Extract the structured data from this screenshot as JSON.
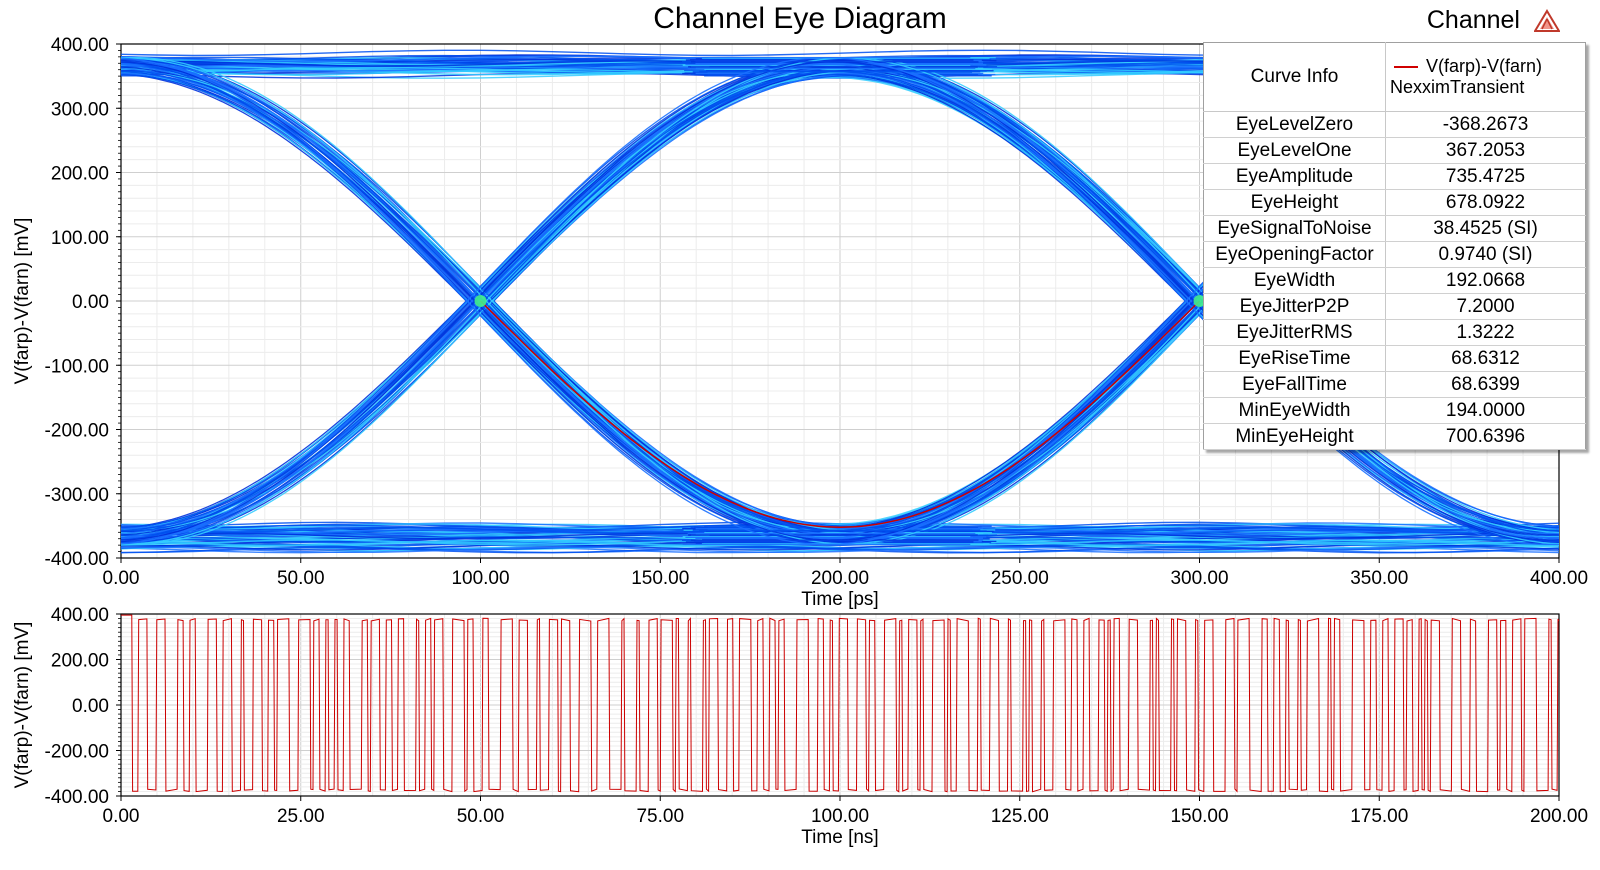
{
  "title": "Channel Eye Diagram",
  "header_right_label": "Channel",
  "colors": {
    "trace_red": "#cc0000",
    "eye_blue": "#0033dd",
    "eye_cyan": "#33ccff",
    "eye_green": "#44ee88",
    "grid": "#d8d8d8"
  },
  "info_table": {
    "header_label": "Curve Info",
    "series_name": "V(farp)-V(farn)",
    "series_source": "NexximTransient",
    "rows": [
      {
        "label": "EyeLevelZero",
        "value": "-368.2673"
      },
      {
        "label": "EyeLevelOne",
        "value": "367.2053"
      },
      {
        "label": "EyeAmplitude",
        "value": "735.4725"
      },
      {
        "label": "EyeHeight",
        "value": "678.0922"
      },
      {
        "label": "EyeSignalToNoise",
        "value": "38.4525 (SI)"
      },
      {
        "label": "EyeOpeningFactor",
        "value": "0.9740 (SI)"
      },
      {
        "label": "EyeWidth",
        "value": "192.0668"
      },
      {
        "label": "EyeJitterP2P",
        "value": "7.2000"
      },
      {
        "label": "EyeJitterRMS",
        "value": "1.3222"
      },
      {
        "label": "EyeRiseTime",
        "value": "68.6312"
      },
      {
        "label": "EyeFallTime",
        "value": "68.6399"
      },
      {
        "label": "MinEyeWidth",
        "value": "194.0000"
      },
      {
        "label": "MinEyeHeight",
        "value": "700.6396"
      }
    ]
  },
  "chart_data": [
    {
      "type": "line",
      "name": "eye diagram",
      "title": "Channel Eye Diagram",
      "xlabel": "Time [ps]",
      "ylabel": "V(farp)-V(farn) [mV]",
      "xlim": [
        0,
        400
      ],
      "ylim": [
        -400,
        400
      ],
      "x_ticks": [
        "0.00",
        "50.00",
        "100.00",
        "150.00",
        "200.00",
        "250.00",
        "300.00",
        "350.00",
        "400.00"
      ],
      "y_ticks": [
        "400.00",
        "300.00",
        "200.00",
        "100.00",
        "0.00",
        "-100.00",
        "-200.00",
        "-300.00",
        "-400.00"
      ],
      "grid": true,
      "eye": {
        "level_one": 367.2053,
        "level_zero": -368.2673,
        "crossings_ps": [
          100,
          300
        ],
        "crossing_mv": 0,
        "inner_eye_peak_mv": 352,
        "outer_band_max_mv": 385,
        "outer_band_min_mv": 345
      }
    },
    {
      "type": "line",
      "name": "transient waveform",
      "xlabel": "Time [ns]",
      "ylabel": "V(farp)-V(farn) [mV]",
      "xlim": [
        0,
        200
      ],
      "ylim": [
        -400,
        400
      ],
      "x_ticks": [
        "0.00",
        "25.00",
        "50.00",
        "75.00",
        "100.00",
        "125.00",
        "150.00",
        "175.00",
        "200.00"
      ],
      "y_ticks": [
        "400.00",
        "200.00",
        "0.00",
        "-200.00",
        "-400.00"
      ],
      "grid": true,
      "series": [
        {
          "name": "V(farp)-V(farn)",
          "high_mv": 375,
          "low_mv": -375,
          "bit_period_ps": 200
        }
      ]
    }
  ]
}
